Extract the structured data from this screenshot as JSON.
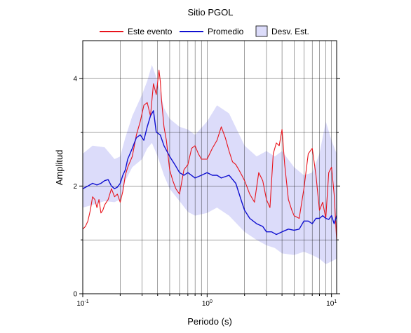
{
  "chart_data": {
    "type": "line",
    "title": "Sitio PGOL",
    "xlabel": "Periodo (s)",
    "ylabel": "Amplitud",
    "x_scale": "log",
    "xlim": [
      0.1,
      11
    ],
    "ylim": [
      0,
      4.7
    ],
    "x_ticks": [
      {
        "value": 0.1,
        "base": "10",
        "exp": "-1"
      },
      {
        "value": 1,
        "base": "10",
        "exp": "0"
      },
      {
        "value": 10,
        "base": "10",
        "exp": "1"
      }
    ],
    "y_ticks": [
      0,
      2,
      4
    ],
    "grid": true,
    "legend_position": "top",
    "legend": [
      {
        "label": "Este evento",
        "kind": "line",
        "color": "#e8131b"
      },
      {
        "label": "Promedio",
        "kind": "line",
        "color": "#1010d0"
      },
      {
        "label": "Desv. Est.",
        "kind": "band",
        "color": "#dcdcfa"
      }
    ],
    "band": {
      "name": "Desv. Est.",
      "color": "#dcdcfa",
      "x": [
        0.1,
        0.12,
        0.15,
        0.18,
        0.2,
        0.22,
        0.25,
        0.3,
        0.33,
        0.36,
        0.4,
        0.45,
        0.5,
        0.6,
        0.7,
        0.8,
        1.0,
        1.2,
        1.5,
        2.0,
        2.5,
        3.0,
        3.5,
        4.0,
        5.0,
        6.0,
        7.0,
        8.0,
        9.0,
        10.0,
        11.0
      ],
      "upper": [
        2.6,
        2.75,
        2.72,
        2.5,
        2.55,
        2.9,
        3.3,
        3.7,
        3.95,
        4.25,
        3.95,
        3.45,
        3.25,
        3.1,
        3.05,
        2.95,
        3.2,
        3.5,
        3.35,
        2.75,
        2.55,
        2.65,
        2.55,
        2.65,
        2.35,
        2.2,
        2.25,
        2.6,
        3.2,
        2.85,
        2.6
      ],
      "lower": [
        1.6,
        1.65,
        1.72,
        1.7,
        1.75,
        2.1,
        2.35,
        2.5,
        2.7,
        2.8,
        2.55,
        2.2,
        1.95,
        1.72,
        1.52,
        1.45,
        1.5,
        1.6,
        1.45,
        1.15,
        1.0,
        0.9,
        0.85,
        0.75,
        0.72,
        0.78,
        0.72,
        0.65,
        0.55,
        0.6,
        0.65
      ]
    },
    "series": [
      {
        "name": "Este evento",
        "color": "#e8131b",
        "x": [
          0.1,
          0.105,
          0.11,
          0.115,
          0.12,
          0.125,
          0.13,
          0.135,
          0.14,
          0.145,
          0.15,
          0.16,
          0.17,
          0.18,
          0.19,
          0.2,
          0.21,
          0.22,
          0.23,
          0.25,
          0.27,
          0.29,
          0.31,
          0.33,
          0.35,
          0.37,
          0.39,
          0.41,
          0.42,
          0.43,
          0.45,
          0.47,
          0.5,
          0.53,
          0.56,
          0.6,
          0.65,
          0.7,
          0.75,
          0.8,
          0.85,
          0.9,
          1.0,
          1.1,
          1.2,
          1.3,
          1.4,
          1.5,
          1.6,
          1.7,
          1.8,
          1.9,
          2.0,
          2.2,
          2.4,
          2.6,
          2.8,
          3.0,
          3.2,
          3.4,
          3.6,
          3.8,
          4.0,
          4.2,
          4.5,
          4.8,
          5.0,
          5.5,
          6.0,
          6.5,
          7.0,
          7.5,
          8.0,
          8.5,
          9.0,
          9.5,
          10.0,
          10.5,
          11.0
        ],
        "values": [
          1.2,
          1.25,
          1.35,
          1.55,
          1.8,
          1.75,
          1.6,
          1.75,
          1.5,
          1.55,
          1.65,
          1.75,
          1.95,
          1.8,
          1.85,
          1.7,
          1.9,
          2.2,
          2.35,
          2.55,
          2.95,
          3.2,
          3.5,
          3.55,
          3.3,
          3.9,
          3.7,
          4.15,
          3.95,
          3.6,
          3.1,
          2.85,
          2.3,
          2.1,
          1.95,
          1.85,
          2.3,
          2.4,
          2.7,
          2.75,
          2.6,
          2.5,
          2.5,
          2.7,
          2.85,
          3.1,
          2.9,
          2.65,
          2.45,
          2.4,
          2.3,
          2.2,
          2.1,
          1.85,
          1.7,
          2.25,
          2.1,
          1.75,
          1.6,
          2.6,
          2.8,
          2.75,
          3.05,
          2.4,
          1.75,
          1.55,
          1.45,
          1.4,
          1.95,
          2.6,
          2.7,
          2.2,
          1.55,
          1.7,
          1.4,
          2.25,
          2.35,
          1.85,
          1.0
        ]
      },
      {
        "name": "Promedio",
        "color": "#1010d0",
        "x": [
          0.1,
          0.11,
          0.12,
          0.13,
          0.14,
          0.15,
          0.16,
          0.17,
          0.18,
          0.19,
          0.2,
          0.21,
          0.22,
          0.23,
          0.25,
          0.27,
          0.29,
          0.31,
          0.33,
          0.35,
          0.37,
          0.39,
          0.42,
          0.45,
          0.5,
          0.55,
          0.6,
          0.65,
          0.7,
          0.8,
          0.9,
          1.0,
          1.1,
          1.2,
          1.3,
          1.5,
          1.7,
          1.9,
          2.0,
          2.2,
          2.5,
          2.8,
          3.0,
          3.3,
          3.6,
          4.0,
          4.5,
          5.0,
          5.5,
          6.0,
          6.5,
          7.0,
          7.5,
          8.0,
          8.5,
          9.0,
          9.5,
          10.0,
          10.5,
          11.0
        ],
        "values": [
          1.95,
          2.0,
          2.05,
          2.02,
          2.05,
          2.1,
          2.12,
          2.0,
          1.95,
          1.98,
          2.05,
          2.2,
          2.3,
          2.5,
          2.7,
          2.9,
          2.95,
          2.85,
          3.1,
          3.3,
          3.4,
          3.0,
          2.95,
          2.75,
          2.55,
          2.4,
          2.25,
          2.2,
          2.25,
          2.15,
          2.2,
          2.25,
          2.2,
          2.2,
          2.15,
          2.2,
          2.05,
          1.7,
          1.55,
          1.4,
          1.3,
          1.25,
          1.15,
          1.15,
          1.1,
          1.15,
          1.2,
          1.18,
          1.2,
          1.35,
          1.35,
          1.3,
          1.4,
          1.4,
          1.45,
          1.4,
          1.38,
          1.45,
          1.3,
          1.45
        ]
      }
    ]
  }
}
